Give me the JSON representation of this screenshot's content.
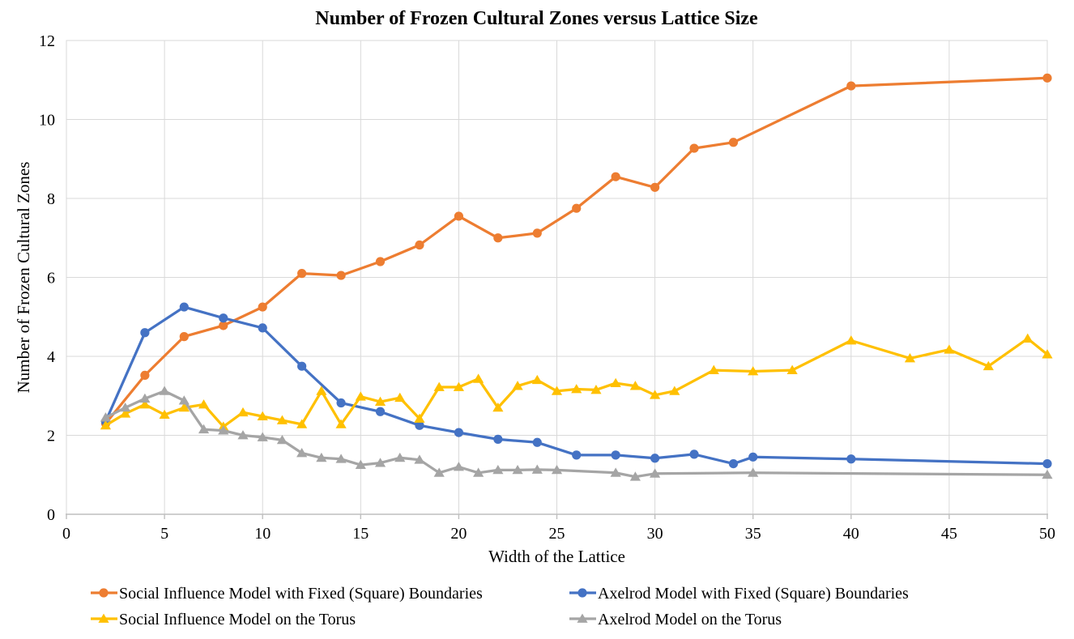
{
  "chart_data": {
    "type": "line",
    "title": "Number of Frozen Cultural Zones versus Lattice Size",
    "xlabel": "Width of the Lattice",
    "ylabel": "Number of Frozen Cultural Zones",
    "xlim": [
      0,
      50
    ],
    "ylim": [
      0,
      12
    ],
    "xticks": [
      0,
      5,
      10,
      15,
      20,
      25,
      30,
      35,
      40,
      45,
      50
    ],
    "yticks": [
      0,
      2,
      4,
      6,
      8,
      10,
      12
    ],
    "grid": true,
    "legend_position": "bottom",
    "legend_columns": 2,
    "grid_color": "#D9D9D9",
    "axis_color": "#BFBFBF",
    "text_color": "#000000",
    "series": [
      {
        "name": "Social Influence Model with Fixed (Square) Boundaries",
        "color": "#ED7D31",
        "marker": "circle",
        "points": [
          [
            2,
            2.3
          ],
          [
            4,
            3.52
          ],
          [
            6,
            4.5
          ],
          [
            8,
            4.78
          ],
          [
            10,
            5.25
          ],
          [
            12,
            6.1
          ],
          [
            14,
            6.05
          ],
          [
            16,
            6.4
          ],
          [
            18,
            6.82
          ],
          [
            20,
            7.55
          ],
          [
            22,
            7.0
          ],
          [
            24,
            7.12
          ],
          [
            26,
            7.75
          ],
          [
            28,
            8.55
          ],
          [
            30,
            8.28
          ],
          [
            32,
            9.27
          ],
          [
            34,
            9.42
          ],
          [
            40,
            10.85
          ],
          [
            50,
            11.05
          ]
        ]
      },
      {
        "name": "Axelrod Model with Fixed (Square) Boundaries",
        "color": "#4472C4",
        "marker": "circle",
        "points": [
          [
            2,
            2.35
          ],
          [
            4,
            4.6
          ],
          [
            6,
            5.25
          ],
          [
            8,
            4.97
          ],
          [
            10,
            4.72
          ],
          [
            12,
            3.75
          ],
          [
            14,
            2.82
          ],
          [
            16,
            2.6
          ],
          [
            18,
            2.25
          ],
          [
            20,
            2.07
          ],
          [
            22,
            1.9
          ],
          [
            24,
            1.82
          ],
          [
            26,
            1.5
          ],
          [
            28,
            1.5
          ],
          [
            30,
            1.42
          ],
          [
            32,
            1.52
          ],
          [
            34,
            1.28
          ],
          [
            35,
            1.45
          ],
          [
            40,
            1.4
          ],
          [
            50,
            1.28
          ]
        ]
      },
      {
        "name": "Social Influence Model on the Torus",
        "color": "#FFC000",
        "marker": "triangle",
        "points": [
          [
            2,
            2.25
          ],
          [
            3,
            2.55
          ],
          [
            4,
            2.78
          ],
          [
            5,
            2.52
          ],
          [
            6,
            2.7
          ],
          [
            7,
            2.78
          ],
          [
            8,
            2.22
          ],
          [
            9,
            2.58
          ],
          [
            10,
            2.48
          ],
          [
            11,
            2.38
          ],
          [
            12,
            2.28
          ],
          [
            13,
            3.12
          ],
          [
            14,
            2.28
          ],
          [
            15,
            2.98
          ],
          [
            16,
            2.85
          ],
          [
            17,
            2.95
          ],
          [
            18,
            2.42
          ],
          [
            19,
            3.22
          ],
          [
            20,
            3.22
          ],
          [
            21,
            3.43
          ],
          [
            22,
            2.7
          ],
          [
            23,
            3.25
          ],
          [
            24,
            3.4
          ],
          [
            25,
            3.12
          ],
          [
            26,
            3.17
          ],
          [
            27,
            3.15
          ],
          [
            28,
            3.32
          ],
          [
            29,
            3.25
          ],
          [
            30,
            3.02
          ],
          [
            31,
            3.12
          ],
          [
            33,
            3.65
          ],
          [
            35,
            3.62
          ],
          [
            37,
            3.65
          ],
          [
            40,
            4.4
          ],
          [
            43,
            3.95
          ],
          [
            45,
            4.17
          ],
          [
            47,
            3.75
          ],
          [
            49,
            4.45
          ],
          [
            50,
            4.05
          ]
        ]
      },
      {
        "name": "Axelrod Model on the Torus",
        "color": "#A5A5A5",
        "marker": "triangle",
        "points": [
          [
            2,
            2.45
          ],
          [
            3,
            2.7
          ],
          [
            4,
            2.93
          ],
          [
            5,
            3.12
          ],
          [
            6,
            2.88
          ],
          [
            7,
            2.15
          ],
          [
            8,
            2.12
          ],
          [
            9,
            2.0
          ],
          [
            10,
            1.95
          ],
          [
            11,
            1.88
          ],
          [
            12,
            1.55
          ],
          [
            13,
            1.43
          ],
          [
            14,
            1.4
          ],
          [
            15,
            1.25
          ],
          [
            16,
            1.3
          ],
          [
            17,
            1.43
          ],
          [
            18,
            1.38
          ],
          [
            19,
            1.05
          ],
          [
            20,
            1.2
          ],
          [
            21,
            1.05
          ],
          [
            22,
            1.12
          ],
          [
            23,
            1.12
          ],
          [
            24,
            1.13
          ],
          [
            25,
            1.12
          ],
          [
            28,
            1.05
          ],
          [
            29,
            0.95
          ],
          [
            30,
            1.03
          ],
          [
            35,
            1.05
          ],
          [
            50,
            1.0
          ]
        ]
      }
    ]
  }
}
